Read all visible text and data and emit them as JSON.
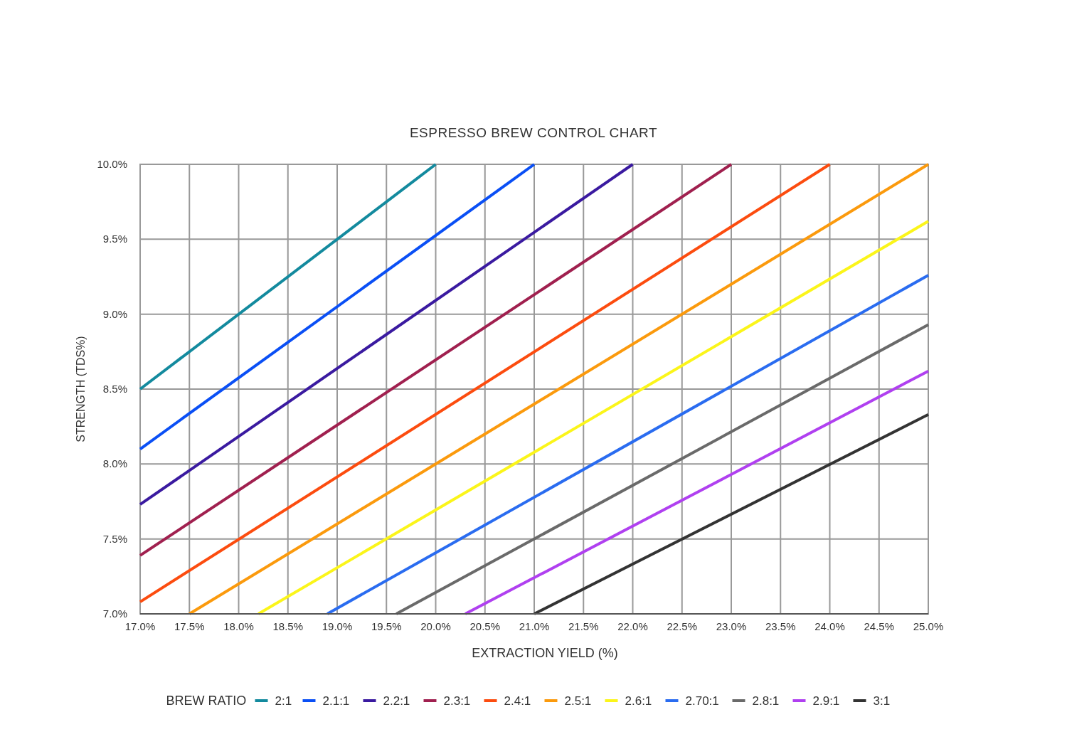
{
  "chart_data": {
    "type": "line",
    "title": "ESPRESSO BREW CONTROL CHART",
    "xlabel": "EXTRACTION YIELD (%)",
    "ylabel": "STRENGTH (TDS%)",
    "legend_title": "BREW RATIO",
    "legend": "bottom",
    "grid": true,
    "marker": "none",
    "line_style": "solid",
    "xlim": [
      17,
      25
    ],
    "ylim": [
      7,
      10
    ],
    "xticks": [
      {
        "value": 17,
        "label": "17.0%"
      },
      {
        "value": 17.5,
        "label": "17.5%"
      },
      {
        "value": 18,
        "label": "18.0%"
      },
      {
        "value": 18.5,
        "label": "18.5%"
      },
      {
        "value": 19,
        "label": "19.0%"
      },
      {
        "value": 19.5,
        "label": "19.5%"
      },
      {
        "value": 20,
        "label": "20.0%"
      },
      {
        "value": 20.5,
        "label": "20.5%"
      },
      {
        "value": 21,
        "label": "21.0%"
      },
      {
        "value": 21.5,
        "label": "21.5%"
      },
      {
        "value": 22,
        "label": "22.0%"
      },
      {
        "value": 22.5,
        "label": "22.5%"
      },
      {
        "value": 23,
        "label": "23.0%"
      },
      {
        "value": 23.5,
        "label": "23.5%"
      },
      {
        "value": 24,
        "label": "24.0%"
      },
      {
        "value": 24.5,
        "label": "24.5%"
      },
      {
        "value": 25,
        "label": "25.0%"
      }
    ],
    "yticks": [
      {
        "value": 7,
        "label": "7.0%"
      },
      {
        "value": 7.5,
        "label": "7.5%"
      },
      {
        "value": 8,
        "label": "8.0%"
      },
      {
        "value": 8.5,
        "label": "8.5%"
      },
      {
        "value": 9,
        "label": "9.0%"
      },
      {
        "value": 9.5,
        "label": "9.5%"
      },
      {
        "value": 10,
        "label": "10.0%"
      }
    ],
    "series": [
      {
        "name": "2:1",
        "color": "#138a9e",
        "x": [
          17,
          20
        ],
        "values": [
          8.5,
          10
        ]
      },
      {
        "name": "2.1:1",
        "color": "#0a4ff5",
        "x": [
          17,
          21
        ],
        "values": [
          8.1,
          10
        ]
      },
      {
        "name": "2.2:1",
        "color": "#3a1aa0",
        "x": [
          17,
          22
        ],
        "values": [
          7.73,
          10
        ]
      },
      {
        "name": "2.3:1",
        "color": "#a0204f",
        "x": [
          17,
          23
        ],
        "values": [
          7.39,
          10
        ]
      },
      {
        "name": "2.4:1",
        "color": "#fc4c0f",
        "x": [
          17,
          24
        ],
        "values": [
          7.08,
          10
        ]
      },
      {
        "name": "2.5:1",
        "color": "#fb9a0d",
        "x": [
          17.5,
          25
        ],
        "values": [
          7,
          10
        ]
      },
      {
        "name": "2.6:1",
        "color": "#fbf51a",
        "x": [
          18.2,
          25
        ],
        "values": [
          7,
          9.62
        ]
      },
      {
        "name": "2.70:1",
        "color": "#2a6cf0",
        "x": [
          18.9,
          25
        ],
        "values": [
          7,
          9.26
        ]
      },
      {
        "name": "2.8:1",
        "color": "#6a6a6a",
        "x": [
          19.6,
          25
        ],
        "values": [
          7,
          8.93
        ]
      },
      {
        "name": "2.9:1",
        "color": "#b040f0",
        "x": [
          20.3,
          25
        ],
        "values": [
          7,
          8.62
        ]
      },
      {
        "name": "3:1",
        "color": "#333333",
        "x": [
          21,
          25
        ],
        "values": [
          7,
          8.33
        ]
      }
    ]
  }
}
